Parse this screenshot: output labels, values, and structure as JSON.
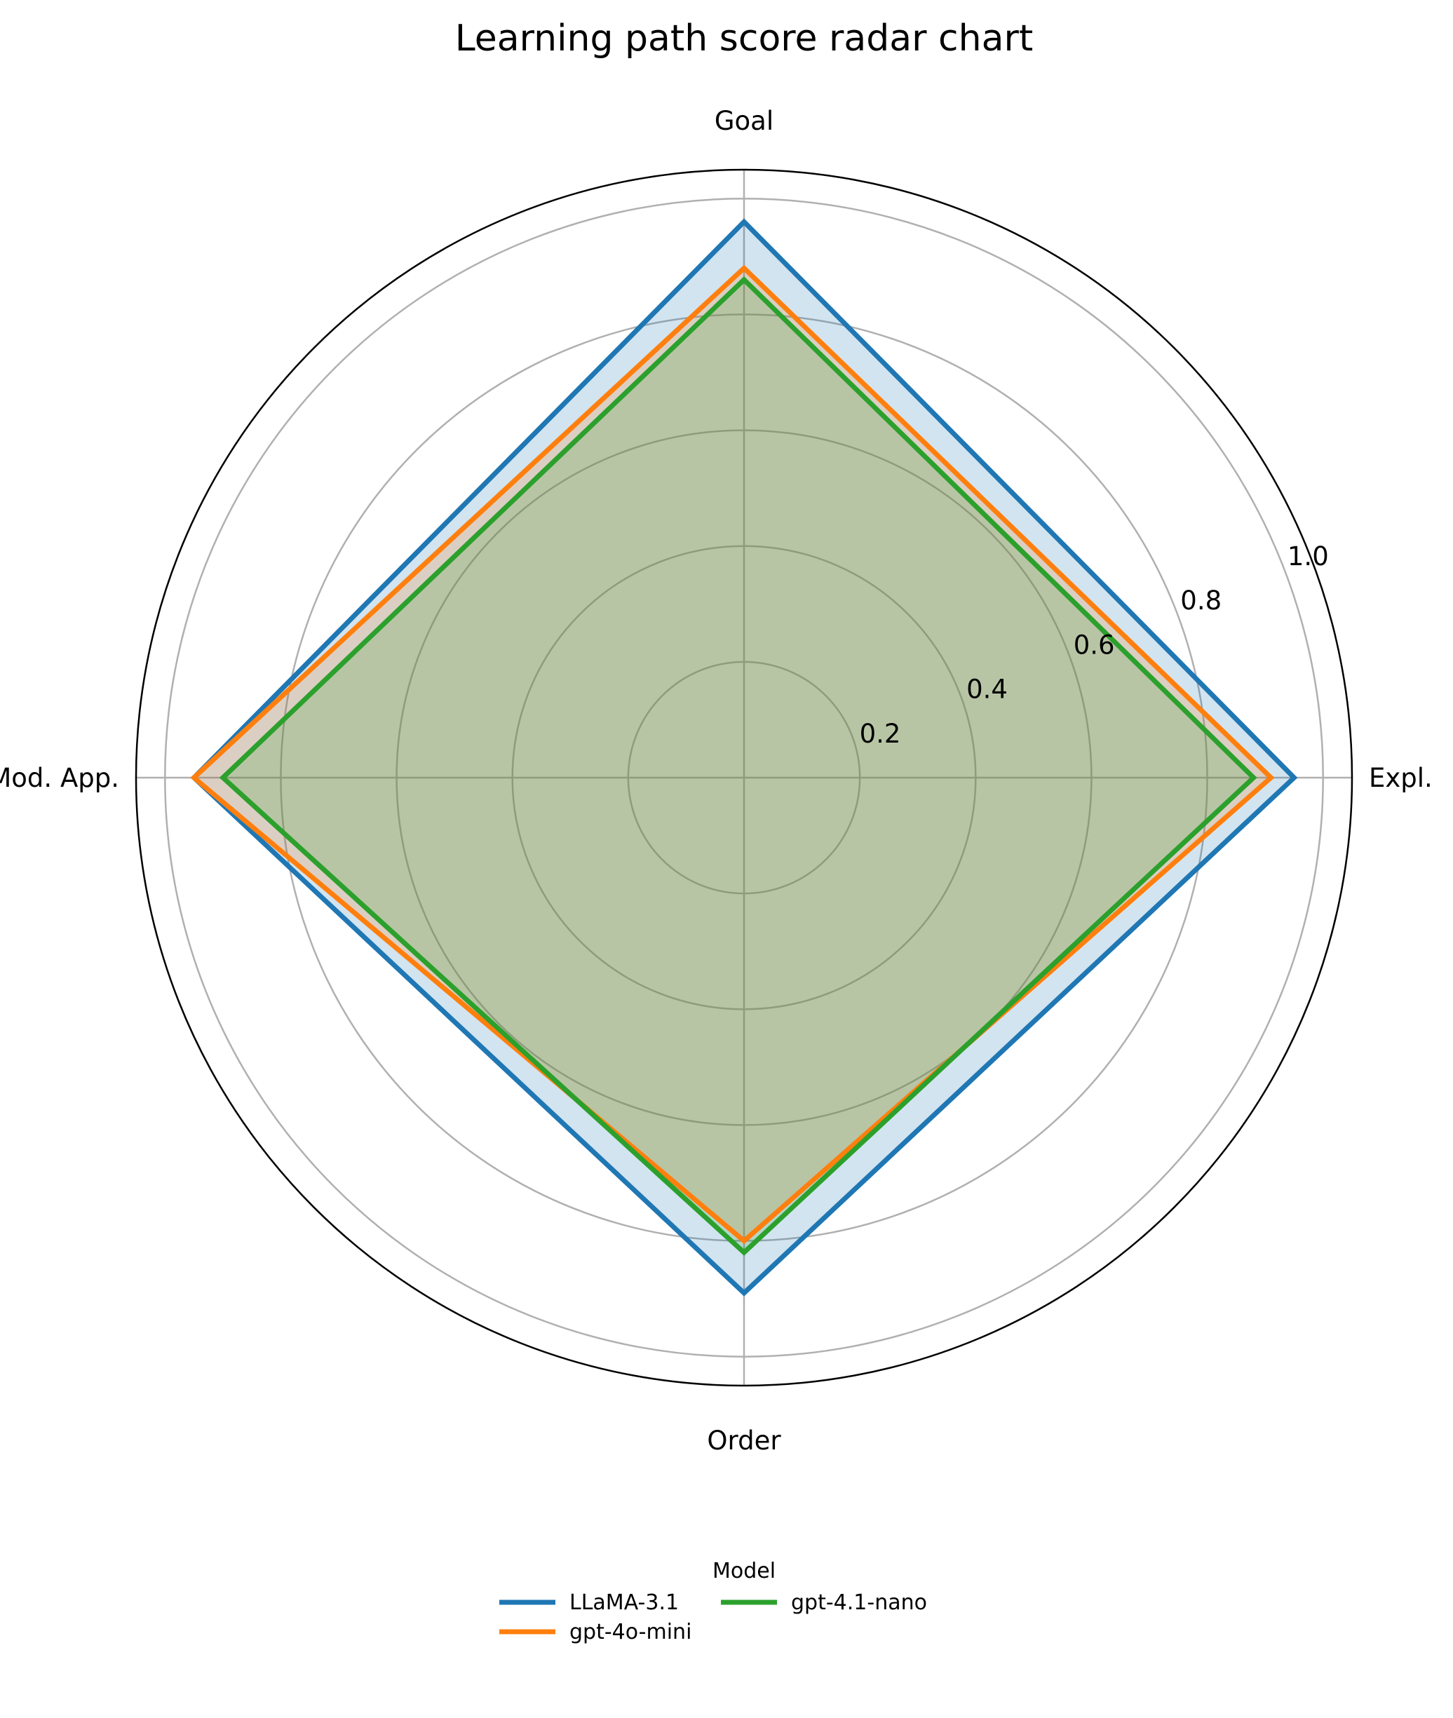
{
  "chart_data": {
    "type": "radar",
    "title": "Learning path score radar chart",
    "axes": [
      "Goal",
      "Expl.",
      "Order",
      "Mod. App."
    ],
    "rlim": [
      0,
      1.05
    ],
    "r_ticks": [
      0.2,
      0.4,
      0.6,
      0.8,
      1.0
    ],
    "r_tick_labels": [
      "0.2",
      "0.4",
      "0.6",
      "0.8",
      "1.0"
    ],
    "grid": true,
    "legend": {
      "title": "Model",
      "placement": "bottom-center",
      "columns": 2
    },
    "series": [
      {
        "name": "LLaMA-3.1",
        "color": "#1f77b4",
        "values": [
          0.96,
          0.95,
          0.89,
          0.95
        ],
        "fill_opacity": 0.2
      },
      {
        "name": "gpt-4o-mini",
        "color": "#ff7f0e",
        "values": [
          0.88,
          0.91,
          0.8,
          0.95
        ],
        "fill_opacity": 0.2
      },
      {
        "name": "gpt-4.1-nano",
        "color": "#2ca02c",
        "values": [
          0.86,
          0.88,
          0.82,
          0.9
        ],
        "fill_opacity": 0.2
      }
    ]
  }
}
